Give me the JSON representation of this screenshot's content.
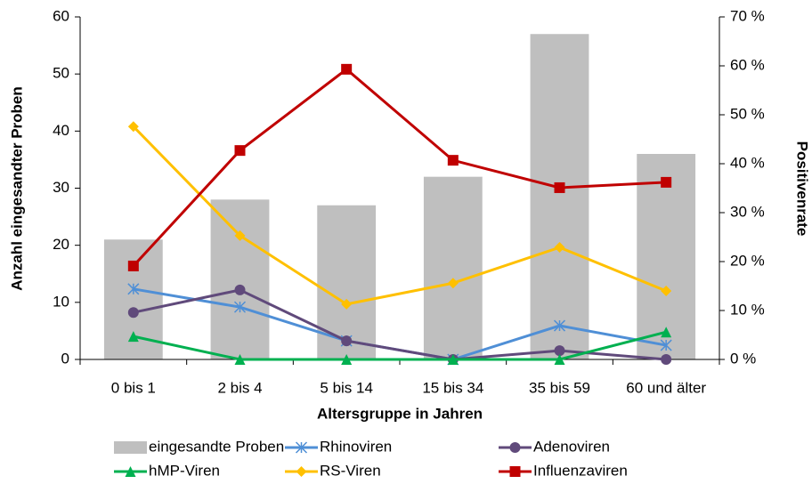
{
  "chart_data": {
    "type": "bar",
    "x_label": "Altersgruppe in Jahren",
    "y_label": "Anzahl eingesandter Proben",
    "y2_label": "Positivenrate",
    "categories": [
      "0 bis 1",
      "2 bis 4",
      "5 bis 14",
      "15 bis 34",
      "35 bis 59",
      "60 und älter"
    ],
    "ylim": [
      0,
      60
    ],
    "yticks": [
      0,
      10,
      20,
      30,
      40,
      50,
      60
    ],
    "y2lim": [
      0,
      70
    ],
    "y2ticks": [
      {
        "value": 0,
        "label": "0 %"
      },
      {
        "value": 10,
        "label": "10 %"
      },
      {
        "value": 20,
        "label": "20 %"
      },
      {
        "value": 30,
        "label": "30 %"
      },
      {
        "value": 40,
        "label": "40 %"
      },
      {
        "value": 50,
        "label": "50 %"
      },
      {
        "value": 60,
        "label": "60 %"
      },
      {
        "value": 70,
        "label": "70 %"
      }
    ],
    "grid": false,
    "legend": "bottom",
    "series": [
      {
        "name": "eingesandte Proben",
        "type": "bar",
        "color": "#bfbfbf",
        "values": [
          21,
          28,
          27,
          32,
          57,
          36
        ]
      },
      {
        "name": "Rhinoviren",
        "type": "line",
        "axis": "y2",
        "marker": "star",
        "color": "#4f8fd6",
        "values": [
          14.4,
          10.7,
          3.8,
          0,
          6.9,
          2.9
        ]
      },
      {
        "name": "Adenoviren",
        "type": "line",
        "axis": "y2",
        "marker": "circle",
        "color": "#604a7b",
        "values": [
          9.6,
          14.2,
          3.8,
          0,
          1.8,
          0
        ]
      },
      {
        "name": "hMP-Viren",
        "type": "line",
        "axis": "y2",
        "marker": "triangle",
        "color": "#00b050",
        "values": [
          4.7,
          0,
          0,
          0,
          0,
          5.6
        ]
      },
      {
        "name": "RS-Viren",
        "type": "line",
        "axis": "y2",
        "marker": "diamond",
        "color": "#ffc000",
        "values": [
          47.6,
          25.3,
          11.3,
          15.6,
          22.9,
          14.0
        ]
      },
      {
        "name": "Influenzaviren",
        "type": "line",
        "axis": "y2",
        "marker": "square",
        "color": "#c00000",
        "values": [
          19.1,
          42.7,
          59.3,
          40.7,
          35.1,
          36.2
        ]
      }
    ]
  }
}
